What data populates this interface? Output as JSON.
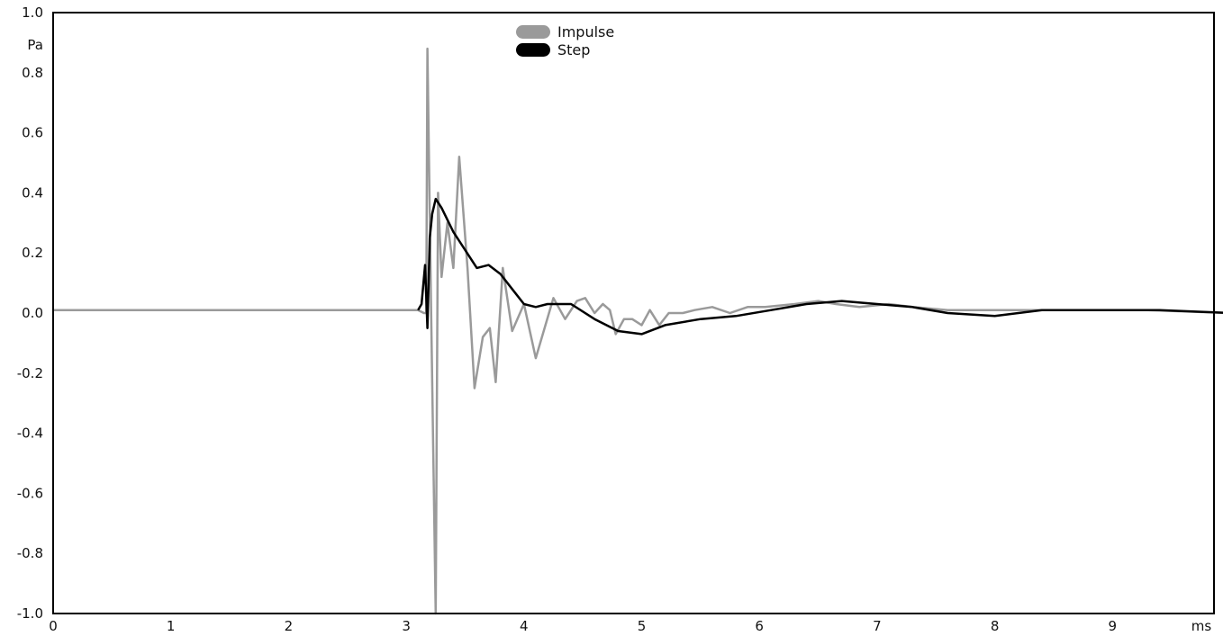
{
  "chart_data": {
    "type": "line",
    "title": "",
    "xlabel": "",
    "ylabel": "",
    "x_unit": "ms",
    "y_unit": "Pa",
    "xlim": [
      0,
      10
    ],
    "ylim": [
      -1.0,
      1.0
    ],
    "x_ticks": [
      "0",
      "1",
      "2",
      "3",
      "4",
      "5",
      "6",
      "7",
      "8",
      "9"
    ],
    "y_ticks": [
      "1.0",
      "0.8",
      "0.6",
      "0.4",
      "0.2",
      "0.0",
      "-0.2",
      "-0.4",
      "-0.6",
      "-0.8",
      "-1.0"
    ],
    "grid": false,
    "legend_position": "top-center",
    "series": [
      {
        "name": "Impulse",
        "color": "#9a9a9a",
        "points": [
          [
            0.0,
            0.01
          ],
          [
            3.1,
            0.01
          ],
          [
            3.15,
            0.0
          ],
          [
            3.17,
            0.0
          ],
          [
            3.18,
            0.88
          ],
          [
            3.21,
            0.05
          ],
          [
            3.25,
            -1.0
          ],
          [
            3.27,
            0.4
          ],
          [
            3.3,
            0.12
          ],
          [
            3.35,
            0.3
          ],
          [
            3.4,
            0.15
          ],
          [
            3.45,
            0.52
          ],
          [
            3.52,
            0.15
          ],
          [
            3.58,
            -0.25
          ],
          [
            3.65,
            -0.08
          ],
          [
            3.71,
            -0.05
          ],
          [
            3.76,
            -0.23
          ],
          [
            3.82,
            0.15
          ],
          [
            3.9,
            -0.06
          ],
          [
            4.0,
            0.03
          ],
          [
            4.1,
            -0.15
          ],
          [
            4.25,
            0.05
          ],
          [
            4.35,
            -0.02
          ],
          [
            4.45,
            0.04
          ],
          [
            4.52,
            0.05
          ],
          [
            4.6,
            0.0
          ],
          [
            4.67,
            0.03
          ],
          [
            4.73,
            0.01
          ],
          [
            4.78,
            -0.07
          ],
          [
            4.85,
            -0.02
          ],
          [
            4.92,
            -0.02
          ],
          [
            5.0,
            -0.04
          ],
          [
            5.07,
            0.01
          ],
          [
            5.15,
            -0.04
          ],
          [
            5.23,
            0.0
          ],
          [
            5.35,
            0.0
          ],
          [
            5.45,
            0.01
          ],
          [
            5.6,
            0.02
          ],
          [
            5.75,
            0.0
          ],
          [
            5.9,
            0.02
          ],
          [
            6.05,
            0.02
          ],
          [
            6.3,
            0.03
          ],
          [
            6.5,
            0.04
          ],
          [
            6.65,
            0.03
          ],
          [
            6.85,
            0.02
          ],
          [
            7.1,
            0.03
          ],
          [
            7.3,
            0.02
          ],
          [
            7.6,
            0.01
          ],
          [
            8.0,
            0.01
          ],
          [
            8.4,
            0.01
          ],
          [
            8.8,
            0.01
          ],
          [
            9.3,
            0.01
          ],
          [
            10.0,
            0.0
          ]
        ]
      },
      {
        "name": "Step",
        "color": "#000000",
        "points": [
          [
            3.1,
            0.01
          ],
          [
            3.13,
            0.03
          ],
          [
            3.16,
            0.16
          ],
          [
            3.18,
            -0.05
          ],
          [
            3.2,
            0.25
          ],
          [
            3.22,
            0.33
          ],
          [
            3.25,
            0.38
          ],
          [
            3.3,
            0.35
          ],
          [
            3.4,
            0.27
          ],
          [
            3.5,
            0.21
          ],
          [
            3.6,
            0.15
          ],
          [
            3.7,
            0.16
          ],
          [
            3.8,
            0.13
          ],
          [
            3.9,
            0.08
          ],
          [
            4.0,
            0.03
          ],
          [
            4.1,
            0.02
          ],
          [
            4.2,
            0.03
          ],
          [
            4.4,
            0.03
          ],
          [
            4.6,
            -0.02
          ],
          [
            4.8,
            -0.06
          ],
          [
            5.0,
            -0.07
          ],
          [
            5.2,
            -0.04
          ],
          [
            5.5,
            -0.02
          ],
          [
            5.8,
            -0.01
          ],
          [
            6.1,
            0.01
          ],
          [
            6.4,
            0.03
          ],
          [
            6.7,
            0.04
          ],
          [
            7.0,
            0.03
          ],
          [
            7.3,
            0.02
          ],
          [
            7.6,
            0.0
          ],
          [
            8.0,
            -0.01
          ],
          [
            8.4,
            0.01
          ],
          [
            8.8,
            0.01
          ],
          [
            9.4,
            0.01
          ],
          [
            10.0,
            0.0
          ]
        ]
      }
    ]
  }
}
